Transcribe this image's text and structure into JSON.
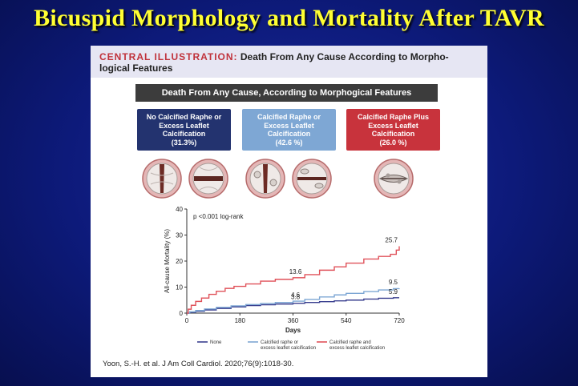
{
  "slide": {
    "title": "Bicuspid Morphology and Mortality After TAVR"
  },
  "illustration": {
    "label": "CENTRAL ILLUSTRATION:",
    "heading": "Death From Any Cause According to Morpho- logical Features",
    "bar_title": "Death From Any Cause, According to Morphogical Features",
    "categories": [
      {
        "lines": [
          "No Calcified Raphe or",
          "Excess Leaflet",
          "Calcification"
        ],
        "pct": "(31.3%)",
        "color": "#23336f"
      },
      {
        "lines": [
          "Calcified Raphe or",
          "Excess Leaflet",
          "Calcification"
        ],
        "pct": "(42.6 %)",
        "color": "#7ea7d4"
      },
      {
        "lines": [
          "Calcified Raphe Plus",
          "Excess Leaflet",
          "Calcification"
        ],
        "pct": "(26.0 %)",
        "color": "#c8333c"
      }
    ],
    "citation": "Yoon, S.-H. et al. J Am Coll Cardiol. 2020;76(9):1018-30."
  },
  "chart_data": {
    "type": "line",
    "xlabel": "Days",
    "ylabel": "All-cause Mortality (%)",
    "xlim": [
      0,
      720
    ],
    "ylim": [
      0,
      40
    ],
    "xticks": [
      0,
      180,
      360,
      540,
      720
    ],
    "yticks": [
      0,
      10,
      20,
      30,
      40
    ],
    "annotation": "p <0.001 log-rank",
    "grid": false,
    "legend_position": "bottom",
    "series": [
      {
        "name": "None",
        "color": "#3a3f8f",
        "x": [
          0,
          10,
          30,
          60,
          100,
          150,
          200,
          250,
          300,
          360,
          400,
          450,
          500,
          540,
          600,
          650,
          700,
          720
        ],
        "y": [
          0,
          0.3,
          0.7,
          1.2,
          1.8,
          2.4,
          2.9,
          3.2,
          3.5,
          3.8,
          4.1,
          4.4,
          4.7,
          5.0,
          5.4,
          5.7,
          5.9,
          5.9
        ],
        "labels": [
          {
            "x": 360,
            "y": 3.8,
            "text": "3.8"
          },
          {
            "x": 720,
            "y": 5.9,
            "text": "5.9"
          }
        ]
      },
      {
        "name": "Calcified raphe or excess leaflet calcification",
        "color": "#7ea7d4",
        "x": [
          0,
          10,
          30,
          60,
          100,
          150,
          200,
          250,
          300,
          360,
          400,
          450,
          500,
          540,
          600,
          650,
          700,
          720
        ],
        "y": [
          0,
          0.5,
          1.0,
          1.6,
          2.2,
          2.8,
          3.3,
          3.7,
          4.1,
          4.6,
          5.3,
          6.2,
          7.0,
          7.6,
          8.3,
          8.9,
          9.4,
          9.5
        ],
        "labels": [
          {
            "x": 360,
            "y": 4.6,
            "text": "4.6"
          },
          {
            "x": 720,
            "y": 9.5,
            "text": "9.5"
          }
        ]
      },
      {
        "name": "Calcified raphe and excess leaflet calcification",
        "color": "#e0525a",
        "x": [
          0,
          5,
          15,
          30,
          50,
          75,
          100,
          130,
          160,
          200,
          250,
          300,
          360,
          400,
          450,
          500,
          540,
          600,
          650,
          690,
          710,
          720
        ],
        "y": [
          0,
          1.5,
          3.0,
          4.5,
          5.8,
          7.2,
          8.4,
          9.5,
          10.3,
          11.2,
          12.3,
          13.0,
          13.6,
          14.8,
          16.5,
          17.8,
          19.2,
          20.8,
          21.8,
          22.6,
          24.2,
          25.7
        ],
        "labels": [
          {
            "x": 360,
            "y": 13.6,
            "text": "13.6"
          },
          {
            "x": 720,
            "y": 25.7,
            "text": "25.7"
          }
        ]
      }
    ]
  }
}
